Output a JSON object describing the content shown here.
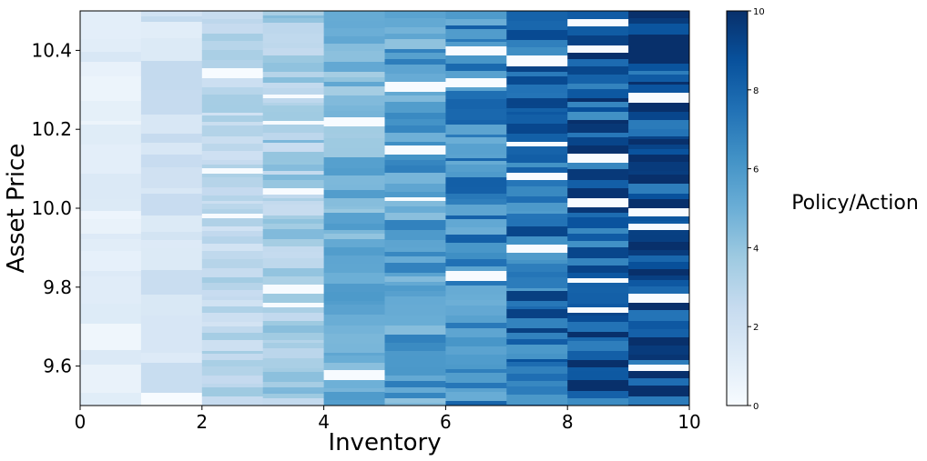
{
  "chart_data": {
    "type": "heatmap",
    "title": "",
    "xlabel": "Inventory",
    "ylabel": "Asset Price",
    "xlim": [
      0,
      10
    ],
    "ylim": [
      9.5,
      10.5
    ],
    "x_ticks": [
      0,
      2,
      4,
      6,
      8,
      10
    ],
    "y_ticks": [
      9.6,
      9.8,
      10.0,
      10.2,
      10.4
    ],
    "x_tick_labels": [
      "0",
      "2",
      "4",
      "6",
      "8",
      "10"
    ],
    "y_tick_labels": [
      "9.6",
      "9.8",
      "10.0",
      "10.2",
      "10.4"
    ],
    "colormap": "Blues",
    "colormap_stops": [
      "#f7fbff",
      "#deebf7",
      "#c6dbef",
      "#9ecae1",
      "#6baed6",
      "#4292c6",
      "#2171b5",
      "#08519c",
      "#08306b"
    ],
    "colorbar": {
      "label": "Policy/Action",
      "range": [
        0,
        10
      ],
      "ticks": [
        0,
        2,
        4,
        6,
        8,
        10
      ],
      "tick_labels": [
        "0",
        "2",
        "4",
        "6",
        "8",
        "10"
      ]
    },
    "inventory_bins": [
      0,
      1,
      2,
      3,
      4,
      5,
      6,
      7,
      8,
      9
    ],
    "price_bands": [
      9.5,
      9.6,
      9.7,
      9.8,
      9.9,
      10.0,
      10.1,
      10.2,
      10.3,
      10.4,
      10.5
    ],
    "mean_policy_per_inventory": [
      1,
      1.8,
      2.8,
      3.5,
      4.6,
      5.6,
      6.6,
      7.6,
      8.3,
      9.1
    ],
    "grid": false,
    "legend": "colorbar-right"
  }
}
